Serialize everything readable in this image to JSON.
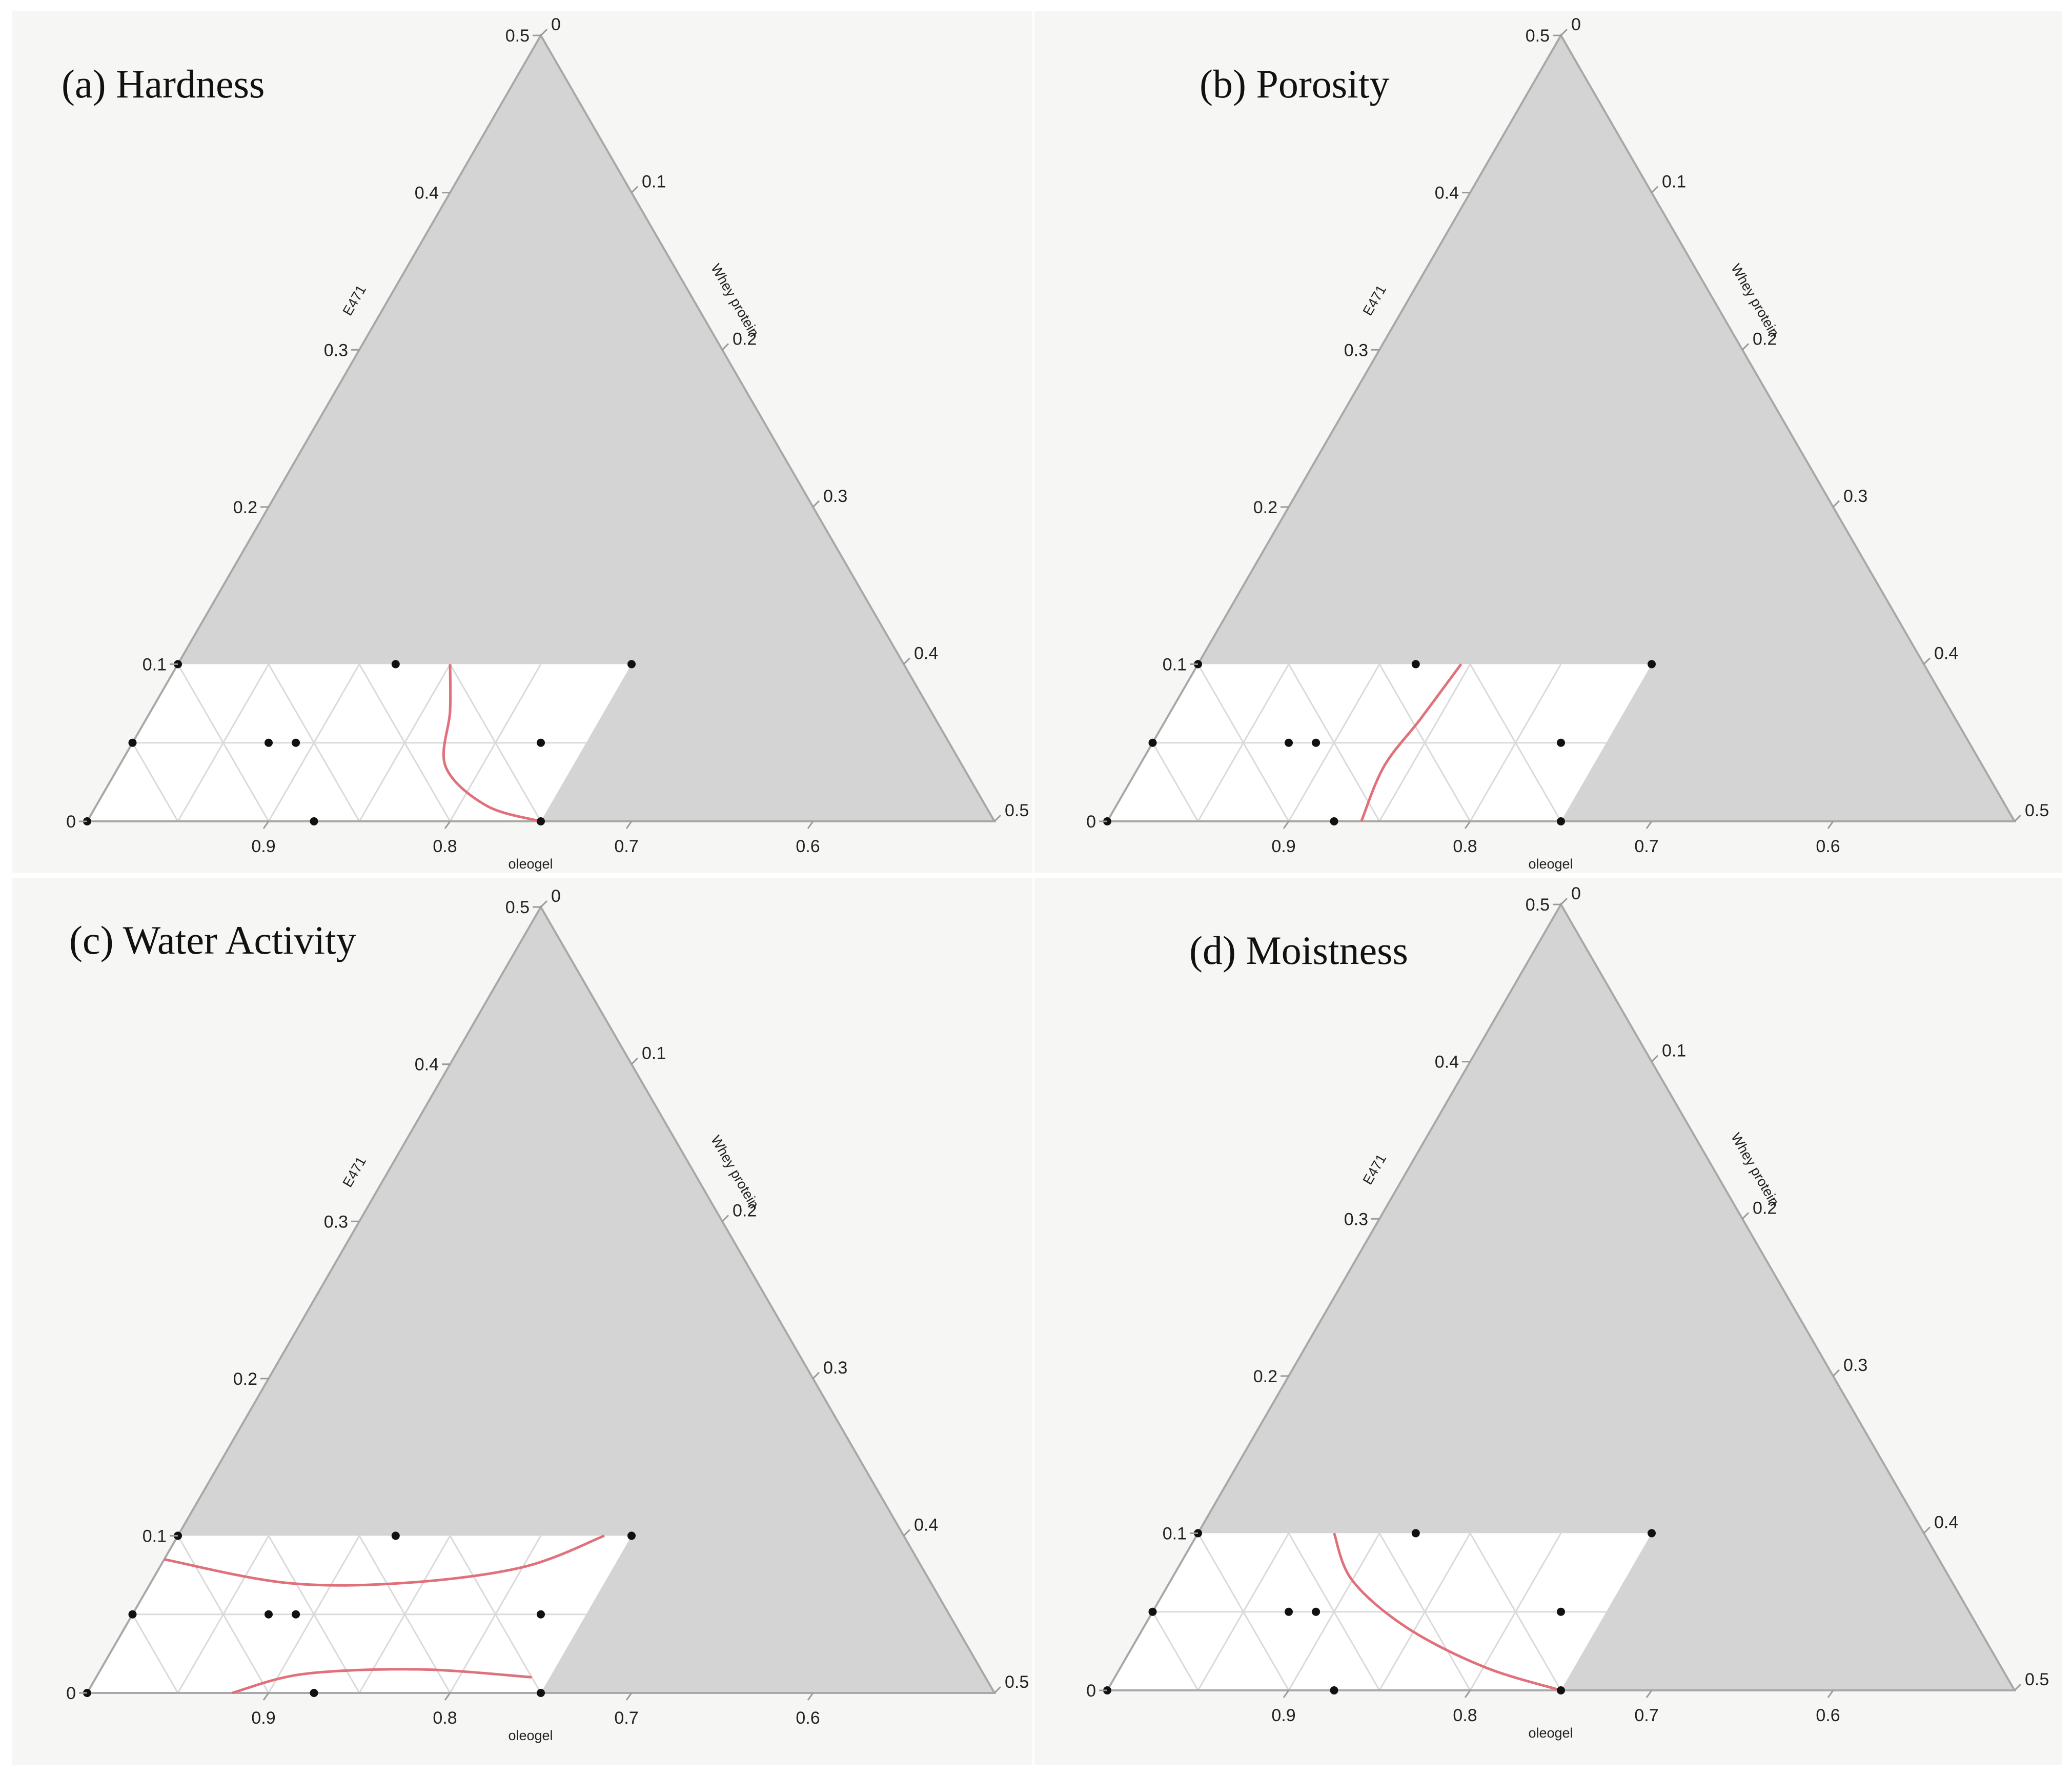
{
  "chart_data": [
    {
      "type": "ternary-contour",
      "panel_label": "(a)",
      "title": "Hardness",
      "axes": {
        "bottom": "oleogel",
        "left": "E471",
        "right": "Whey protein"
      },
      "ticks": {
        "bottom": [
          "0.9",
          "0.8",
          "0.7",
          "0.6"
        ],
        "left": [
          "0",
          "0.1",
          "0.2",
          "0.3",
          "0.4",
          "0.5"
        ],
        "right": [
          "0",
          "0.1",
          "0.2",
          "0.3",
          "0.4",
          "0.5"
        ]
      },
      "constraints": {
        "oleogel": [
          0.5,
          1.0
        ],
        "E471": [
          0,
          0.1
        ],
        "whey_protein": [
          0,
          0.25
        ]
      },
      "design_points": [
        {
          "oleogel": 1.0,
          "E471": 0.0,
          "whey": 0.0
        },
        {
          "oleogel": 0.95,
          "E471": 0.05,
          "whey": 0.0
        },
        {
          "oleogel": 0.9,
          "E471": 0.1,
          "whey": 0.0
        },
        {
          "oleogel": 0.875,
          "E471": 0.0,
          "whey": 0.125
        },
        {
          "oleogel": 0.875,
          "E471": 0.05,
          "whey": 0.075
        },
        {
          "oleogel": 0.86,
          "E471": 0.05,
          "whey": 0.09
        },
        {
          "oleogel": 0.78,
          "E471": 0.1,
          "whey": 0.12
        },
        {
          "oleogel": 0.75,
          "E471": 0.0,
          "whey": 0.25
        },
        {
          "oleogel": 0.725,
          "E471": 0.05,
          "whey": 0.225
        },
        {
          "oleogel": 0.65,
          "E471": 0.1,
          "whey": 0.25
        }
      ],
      "contours": [
        [
          {
            "oleogel": 0.75,
            "E471": 0.1,
            "whey": 0.15
          },
          {
            "oleogel": 0.765,
            "E471": 0.07,
            "whey": 0.165
          },
          {
            "oleogel": 0.785,
            "E471": 0.035,
            "whey": 0.18
          },
          {
            "oleogel": 0.775,
            "E471": 0.01,
            "whey": 0.215
          },
          {
            "oleogel": 0.75,
            "E471": 0.0,
            "whey": 0.25
          }
        ]
      ]
    },
    {
      "type": "ternary-contour",
      "panel_label": "(b)",
      "title": "Porosity",
      "axes": {
        "bottom": "oleogel",
        "left": "E471",
        "right": "Whey protein"
      },
      "ticks": {
        "bottom": [
          "0.9",
          "0.8",
          "0.7",
          "0.6"
        ],
        "left": [
          "0",
          "0.1",
          "0.2",
          "0.3",
          "0.4",
          "0.5"
        ],
        "right": [
          "0",
          "0.1",
          "0.2",
          "0.3",
          "0.4",
          "0.5"
        ]
      },
      "constraints": {
        "oleogel": [
          0.5,
          1.0
        ],
        "E471": [
          0,
          0.1
        ],
        "whey_protein": [
          0,
          0.25
        ]
      },
      "design_points": [
        {
          "oleogel": 1.0,
          "E471": 0.0,
          "whey": 0.0
        },
        {
          "oleogel": 0.95,
          "E471": 0.05,
          "whey": 0.0
        },
        {
          "oleogel": 0.9,
          "E471": 0.1,
          "whey": 0.0
        },
        {
          "oleogel": 0.875,
          "E471": 0.0,
          "whey": 0.125
        },
        {
          "oleogel": 0.875,
          "E471": 0.05,
          "whey": 0.075
        },
        {
          "oleogel": 0.86,
          "E471": 0.05,
          "whey": 0.09
        },
        {
          "oleogel": 0.78,
          "E471": 0.1,
          "whey": 0.12
        },
        {
          "oleogel": 0.75,
          "E471": 0.0,
          "whey": 0.25
        },
        {
          "oleogel": 0.725,
          "E471": 0.05,
          "whey": 0.225
        },
        {
          "oleogel": 0.65,
          "E471": 0.1,
          "whey": 0.25
        }
      ],
      "contours": [
        [
          {
            "oleogel": 0.755,
            "E471": 0.1,
            "whey": 0.145
          },
          {
            "oleogel": 0.795,
            "E471": 0.065,
            "whey": 0.14
          },
          {
            "oleogel": 0.83,
            "E471": 0.035,
            "whey": 0.135
          },
          {
            "oleogel": 0.86,
            "E471": 0.0,
            "whey": 0.14
          }
        ]
      ]
    },
    {
      "type": "ternary-contour",
      "panel_label": "(c)",
      "title": "Water Activity",
      "axes": {
        "bottom": "oleogel",
        "left": "E471",
        "right": "Whey protein"
      },
      "ticks": {
        "bottom": [
          "0.9",
          "0.8",
          "0.7",
          "0.6"
        ],
        "left": [
          "0",
          "0.1",
          "0.2",
          "0.3",
          "0.4",
          "0.5"
        ],
        "right": [
          "0",
          "0.1",
          "0.2",
          "0.3",
          "0.4",
          "0.5"
        ]
      },
      "constraints": {
        "oleogel": [
          0.5,
          1.0
        ],
        "E471": [
          0,
          0.1
        ],
        "whey_protein": [
          0,
          0.25
        ]
      },
      "design_points": [
        {
          "oleogel": 1.0,
          "E471": 0.0,
          "whey": 0.0
        },
        {
          "oleogel": 0.95,
          "E471": 0.05,
          "whey": 0.0
        },
        {
          "oleogel": 0.9,
          "E471": 0.1,
          "whey": 0.0
        },
        {
          "oleogel": 0.875,
          "E471": 0.0,
          "whey": 0.125
        },
        {
          "oleogel": 0.875,
          "E471": 0.05,
          "whey": 0.075
        },
        {
          "oleogel": 0.86,
          "E471": 0.05,
          "whey": 0.09
        },
        {
          "oleogel": 0.78,
          "E471": 0.1,
          "whey": 0.12
        },
        {
          "oleogel": 0.75,
          "E471": 0.0,
          "whey": 0.25
        },
        {
          "oleogel": 0.725,
          "E471": 0.05,
          "whey": 0.225
        },
        {
          "oleogel": 0.65,
          "E471": 0.1,
          "whey": 0.25
        }
      ],
      "contours": [
        [
          {
            "oleogel": 0.915,
            "E471": 0.085,
            "whey": 0.0
          },
          {
            "oleogel": 0.855,
            "E471": 0.07,
            "whey": 0.075
          },
          {
            "oleogel": 0.79,
            "E471": 0.07,
            "whey": 0.14
          },
          {
            "oleogel": 0.72,
            "E471": 0.08,
            "whey": 0.2
          },
          {
            "oleogel": 0.665,
            "E471": 0.1,
            "whey": 0.235
          }
        ],
        [
          {
            "oleogel": 0.92,
            "E471": 0.0,
            "whey": 0.08
          },
          {
            "oleogel": 0.875,
            "E471": 0.012,
            "whey": 0.113
          },
          {
            "oleogel": 0.81,
            "E471": 0.015,
            "whey": 0.175
          },
          {
            "oleogel": 0.75,
            "E471": 0.01,
            "whey": 0.24
          }
        ]
      ]
    },
    {
      "type": "ternary-contour",
      "panel_label": "(d)",
      "title": "Moistness",
      "axes": {
        "bottom": "oleogel",
        "left": "E471",
        "right": "Whey protein"
      },
      "ticks": {
        "bottom": [
          "0.9",
          "0.8",
          "0.7",
          "0.6"
        ],
        "left": [
          "0",
          "0.1",
          "0.2",
          "0.3",
          "0.4",
          "0.5"
        ],
        "right": [
          "0",
          "0.1",
          "0.2",
          "0.3",
          "0.4",
          "0.5"
        ]
      },
      "constraints": {
        "oleogel": [
          0.5,
          1.0
        ],
        "E471": [
          0,
          0.1
        ],
        "whey_protein": [
          0,
          0.25
        ]
      },
      "design_points": [
        {
          "oleogel": 1.0,
          "E471": 0.0,
          "whey": 0.0
        },
        {
          "oleogel": 0.95,
          "E471": 0.05,
          "whey": 0.0
        },
        {
          "oleogel": 0.9,
          "E471": 0.1,
          "whey": 0.0
        },
        {
          "oleogel": 0.875,
          "E471": 0.0,
          "whey": 0.125
        },
        {
          "oleogel": 0.875,
          "E471": 0.05,
          "whey": 0.075
        },
        {
          "oleogel": 0.86,
          "E471": 0.05,
          "whey": 0.09
        },
        {
          "oleogel": 0.78,
          "E471": 0.1,
          "whey": 0.12
        },
        {
          "oleogel": 0.75,
          "E471": 0.0,
          "whey": 0.25
        },
        {
          "oleogel": 0.725,
          "E471": 0.05,
          "whey": 0.225
        },
        {
          "oleogel": 0.65,
          "E471": 0.1,
          "whey": 0.25
        }
      ],
      "contours": [
        [
          {
            "oleogel": 0.825,
            "E471": 0.1,
            "whey": 0.075
          },
          {
            "oleogel": 0.83,
            "E471": 0.07,
            "whey": 0.1
          },
          {
            "oleogel": 0.815,
            "E471": 0.04,
            "whey": 0.145
          },
          {
            "oleogel": 0.785,
            "E471": 0.015,
            "whey": 0.2
          },
          {
            "oleogel": 0.75,
            "E471": 0.0,
            "whey": 0.25
          }
        ]
      ]
    }
  ]
}
